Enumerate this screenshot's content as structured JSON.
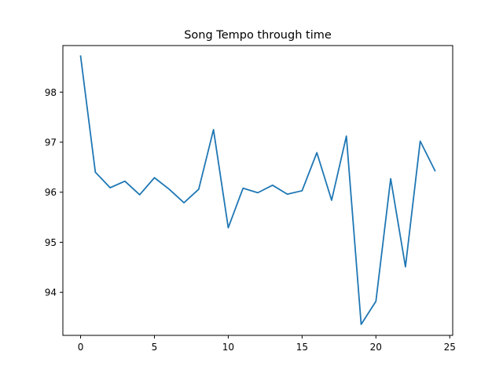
{
  "chart_data": {
    "type": "line",
    "title": "Song Tempo through time",
    "xlabel": "",
    "ylabel": "",
    "xlim": [
      -1.2,
      25.2
    ],
    "ylim": [
      93.14,
      98.93
    ],
    "x_ticks": [
      0,
      5,
      10,
      15,
      20,
      25
    ],
    "y_ticks": [
      94,
      95,
      96,
      97,
      98
    ],
    "grid": false,
    "line_color": "#1f77b4",
    "series": [
      {
        "x": [
          0,
          1,
          2,
          3,
          4,
          5,
          6,
          7,
          8,
          9,
          10,
          11,
          12,
          13,
          14,
          15,
          16,
          17,
          18,
          19,
          20,
          21,
          22,
          23,
          24
        ],
        "values": [
          98.72,
          96.4,
          96.09,
          96.22,
          95.95,
          96.29,
          96.06,
          95.79,
          96.06,
          97.25,
          95.29,
          96.08,
          95.99,
          96.14,
          95.96,
          96.03,
          96.79,
          95.84,
          97.12,
          93.36,
          93.82,
          96.27,
          94.51,
          97.02,
          96.43
        ]
      }
    ]
  }
}
